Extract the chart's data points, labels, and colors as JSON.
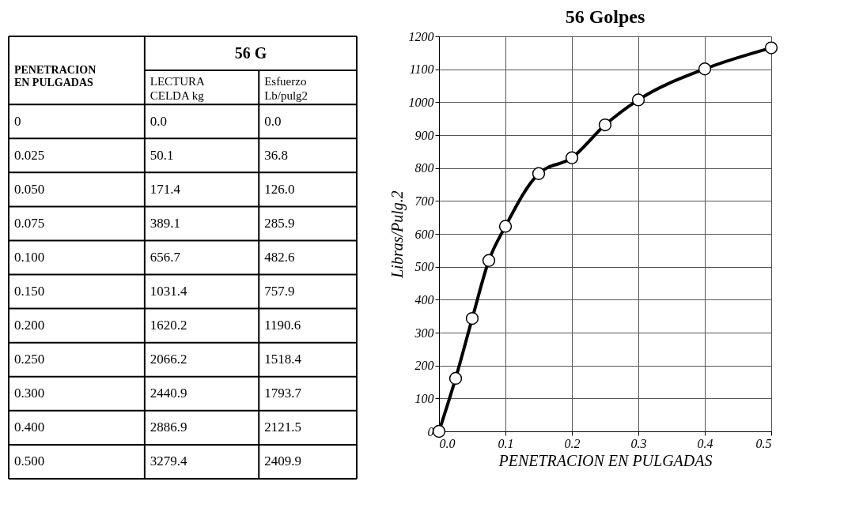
{
  "chart_data": [
    {
      "type": "other",
      "annotations": [
        "PENETRACION\nEN PULGADAS",
        "56 G",
        "LECTURA\nCELDA kg",
        "Esfuerzo\nLb/pulg2",
        "0",
        "0.0",
        "0.0",
        "0.025",
        "50.1",
        "36.8",
        "0.050",
        "171.4",
        "126.0",
        "0.075",
        "389.1",
        "285.9",
        "0.100",
        "656.7",
        "482.6",
        "0.150",
        "1031.4",
        "757.9",
        "0.200",
        "1620.2",
        "1190.6",
        "0.250",
        "2066.2",
        "1518.4",
        "0.300",
        "2440.9",
        "1793.7",
        "0.400",
        "2886.9",
        "2121.5",
        "0.500",
        "3279.4",
        "2409.9"
      ]
    },
    {
      "type": "line",
      "title": "56 Golpes",
      "xlabel": "PENETRACION EN PULGADAS",
      "ylabel": "Libras/Pulg.2",
      "x": [
        0,
        0.025,
        0.05,
        0.075,
        0.1,
        0.15,
        0.2,
        0.25,
        0.3,
        0.4,
        0.5
      ],
      "series": [
        {
          "color": "#000000",
          "values": [
            0,
            161,
            343,
            519,
            623,
            783,
            831,
            931,
            1007,
            1101,
            1165
          ]
        }
      ],
      "xlim": [
        0,
        0.5
      ],
      "xticks": [
        {
          "value": 0,
          "label": "0.0"
        },
        0.1,
        0.2,
        0.3,
        0.4,
        0.5
      ],
      "ylim": [
        0,
        1200
      ],
      "yticks": [
        0,
        100,
        200,
        300,
        400,
        500,
        600,
        700,
        800,
        900,
        1000,
        1100,
        1200
      ],
      "grid": true,
      "marker": "circle",
      "line_style": "solid"
    }
  ]
}
